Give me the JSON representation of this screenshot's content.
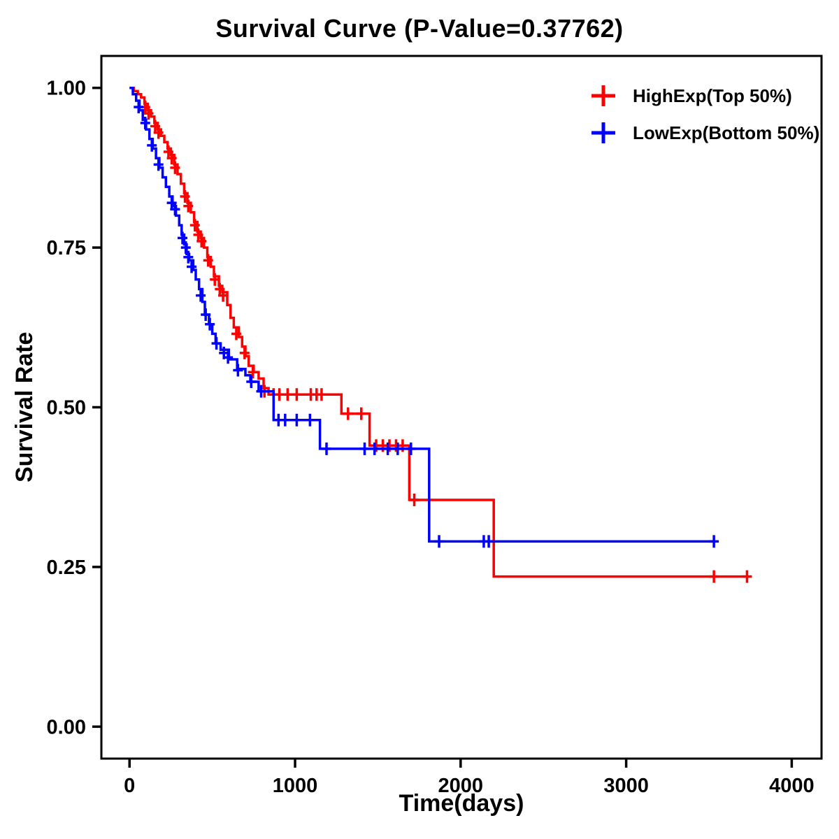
{
  "chart_data": {
    "type": "line",
    "subtype": "kaplan-meier-step",
    "title": "Survival Curve (P-Value=0.37762)",
    "xlabel": "Time(days)",
    "ylabel": "Survival Rate",
    "xlim": [
      -170,
      4180
    ],
    "ylim": [
      -0.05,
      1.05
    ],
    "grid": false,
    "legend_position": "top-right",
    "xticks": [
      {
        "value": 0,
        "label": "0"
      },
      {
        "value": 1000,
        "label": "1000"
      },
      {
        "value": 2000,
        "label": "2000"
      },
      {
        "value": 3000,
        "label": "3000"
      },
      {
        "value": 4000,
        "label": "4000"
      }
    ],
    "yticks": [
      {
        "value": 0.0,
        "label": "0.00"
      },
      {
        "value": 0.25,
        "label": "0.25"
      },
      {
        "value": 0.5,
        "label": "0.50"
      },
      {
        "value": 0.75,
        "label": "0.75"
      },
      {
        "value": 1.0,
        "label": "1.00"
      }
    ],
    "series": [
      {
        "name": "HighExp(Top 50%)",
        "color": "#FF0000",
        "steps": [
          [
            0,
            1.0
          ],
          [
            25,
            0.995
          ],
          [
            50,
            0.99
          ],
          [
            70,
            0.985
          ],
          [
            90,
            0.975
          ],
          [
            110,
            0.965
          ],
          [
            130,
            0.955
          ],
          [
            150,
            0.945
          ],
          [
            170,
            0.935
          ],
          [
            190,
            0.925
          ],
          [
            210,
            0.915
          ],
          [
            230,
            0.905
          ],
          [
            250,
            0.895
          ],
          [
            270,
            0.88
          ],
          [
            290,
            0.865
          ],
          [
            310,
            0.85
          ],
          [
            330,
            0.835
          ],
          [
            350,
            0.82
          ],
          [
            370,
            0.805
          ],
          [
            390,
            0.79
          ],
          [
            410,
            0.775
          ],
          [
            430,
            0.765
          ],
          [
            450,
            0.75
          ],
          [
            470,
            0.735
          ],
          [
            490,
            0.72
          ],
          [
            510,
            0.705
          ],
          [
            540,
            0.69
          ],
          [
            560,
            0.68
          ],
          [
            590,
            0.66
          ],
          [
            610,
            0.64
          ],
          [
            630,
            0.625
          ],
          [
            660,
            0.61
          ],
          [
            680,
            0.595
          ],
          [
            700,
            0.58
          ],
          [
            720,
            0.565
          ],
          [
            750,
            0.555
          ],
          [
            780,
            0.545
          ],
          [
            810,
            0.53
          ],
          [
            840,
            0.52
          ],
          [
            1280,
            0.49
          ],
          [
            1450,
            0.44
          ],
          [
            1690,
            0.355
          ],
          [
            2200,
            0.235
          ],
          [
            3730,
            0.235
          ]
        ],
        "censors": [
          [
            95,
            0.97
          ],
          [
            115,
            0.96
          ],
          [
            155,
            0.94
          ],
          [
            175,
            0.93
          ],
          [
            235,
            0.9
          ],
          [
            255,
            0.89
          ],
          [
            275,
            0.875
          ],
          [
            335,
            0.83
          ],
          [
            355,
            0.815
          ],
          [
            395,
            0.785
          ],
          [
            415,
            0.77
          ],
          [
            435,
            0.76
          ],
          [
            475,
            0.73
          ],
          [
            515,
            0.7
          ],
          [
            545,
            0.685
          ],
          [
            565,
            0.675
          ],
          [
            645,
            0.615
          ],
          [
            695,
            0.585
          ],
          [
            745,
            0.555
          ],
          [
            815,
            0.525
          ],
          [
            870,
            0.52
          ],
          [
            905,
            0.52
          ],
          [
            955,
            0.52
          ],
          [
            1010,
            0.52
          ],
          [
            1095,
            0.52
          ],
          [
            1130,
            0.52
          ],
          [
            1160,
            0.52
          ],
          [
            1320,
            0.49
          ],
          [
            1400,
            0.49
          ],
          [
            1490,
            0.44
          ],
          [
            1530,
            0.44
          ],
          [
            1570,
            0.44
          ],
          [
            1610,
            0.44
          ],
          [
            1650,
            0.44
          ],
          [
            1720,
            0.355
          ],
          [
            3530,
            0.235
          ],
          [
            3730,
            0.235
          ]
        ]
      },
      {
        "name": "LowExp(Bottom 50%)",
        "color": "#0000FF",
        "steps": [
          [
            0,
            1.0
          ],
          [
            20,
            0.99
          ],
          [
            40,
            0.98
          ],
          [
            60,
            0.965
          ],
          [
            80,
            0.95
          ],
          [
            100,
            0.935
          ],
          [
            120,
            0.92
          ],
          [
            140,
            0.905
          ],
          [
            160,
            0.89
          ],
          [
            180,
            0.875
          ],
          [
            200,
            0.86
          ],
          [
            220,
            0.845
          ],
          [
            240,
            0.83
          ],
          [
            260,
            0.815
          ],
          [
            280,
            0.8
          ],
          [
            300,
            0.785
          ],
          [
            315,
            0.77
          ],
          [
            330,
            0.755
          ],
          [
            345,
            0.74
          ],
          [
            360,
            0.73
          ],
          [
            385,
            0.715
          ],
          [
            400,
            0.7
          ],
          [
            420,
            0.685
          ],
          [
            440,
            0.665
          ],
          [
            455,
            0.645
          ],
          [
            480,
            0.63
          ],
          [
            500,
            0.615
          ],
          [
            520,
            0.6
          ],
          [
            550,
            0.59
          ],
          [
            600,
            0.575
          ],
          [
            650,
            0.56
          ],
          [
            700,
            0.55
          ],
          [
            730,
            0.54
          ],
          [
            780,
            0.525
          ],
          [
            870,
            0.48
          ],
          [
            1150,
            0.435
          ],
          [
            1810,
            0.29
          ],
          [
            3530,
            0.29
          ]
        ],
        "censors": [
          [
            55,
            0.97
          ],
          [
            95,
            0.945
          ],
          [
            135,
            0.91
          ],
          [
            175,
            0.88
          ],
          [
            255,
            0.82
          ],
          [
            275,
            0.81
          ],
          [
            320,
            0.765
          ],
          [
            340,
            0.75
          ],
          [
            355,
            0.735
          ],
          [
            375,
            0.72
          ],
          [
            430,
            0.675
          ],
          [
            460,
            0.645
          ],
          [
            485,
            0.63
          ],
          [
            525,
            0.6
          ],
          [
            570,
            0.585
          ],
          [
            595,
            0.578
          ],
          [
            655,
            0.558
          ],
          [
            735,
            0.54
          ],
          [
            795,
            0.525
          ],
          [
            900,
            0.48
          ],
          [
            940,
            0.48
          ],
          [
            1010,
            0.48
          ],
          [
            1090,
            0.48
          ],
          [
            1190,
            0.435
          ],
          [
            1420,
            0.435
          ],
          [
            1480,
            0.435
          ],
          [
            1560,
            0.435
          ],
          [
            1620,
            0.435
          ],
          [
            1700,
            0.435
          ],
          [
            1870,
            0.29
          ],
          [
            2140,
            0.29
          ],
          [
            2170,
            0.29
          ],
          [
            3530,
            0.29
          ]
        ]
      }
    ]
  }
}
